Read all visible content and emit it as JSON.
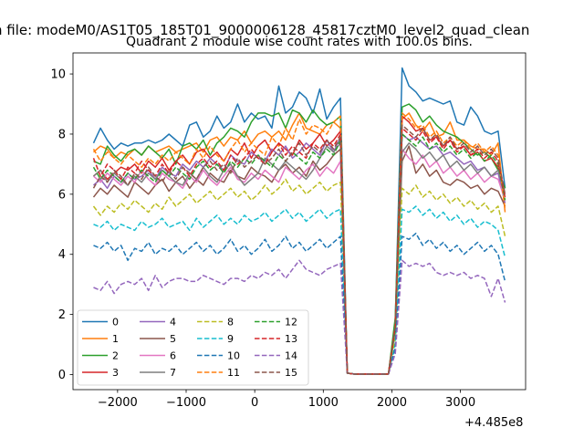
{
  "figure": {
    "suptitle": "n file: modeM0/AS1T05_185T01_9000006128_45817cztM0_level2_quad_clean",
    "title": "Quadrant 2 module wise count rates with 100.0s bins.",
    "offset_label": "+4.485e8"
  },
  "chart_data": {
    "type": "line",
    "title": "Quadrant 2 module wise count rates with 100.0s bins.",
    "xlabel": "",
    "ylabel": "",
    "x_offset": 448500000,
    "xlim": [
      -2650,
      3950
    ],
    "ylim": [
      -0.5,
      10.7
    ],
    "xticks": [
      -2000,
      -1000,
      0,
      1000,
      2000,
      3000
    ],
    "xtick_labels": [
      "−2000",
      "−1000",
      "0",
      "1000",
      "2000",
      "3000"
    ],
    "yticks": [
      0,
      2,
      4,
      6,
      8,
      10
    ],
    "ytick_labels": [
      "0",
      "2",
      "4",
      "6",
      "8",
      "10"
    ],
    "grid": false,
    "legend_placement": "lower-left",
    "x": [
      -2350,
      -2250,
      -2150,
      -2050,
      -1950,
      -1850,
      -1750,
      -1650,
      -1550,
      -1450,
      -1350,
      -1250,
      -1150,
      -1050,
      -950,
      -850,
      -750,
      -650,
      -550,
      -450,
      -350,
      -250,
      -150,
      -50,
      50,
      150,
      250,
      350,
      450,
      550,
      650,
      750,
      850,
      950,
      1050,
      1150,
      1250,
      1350,
      1450,
      1550,
      1650,
      1750,
      1850,
      1950,
      2050,
      2150,
      2250,
      2350,
      2450,
      2550,
      2650,
      2750,
      2850,
      2950,
      3050,
      3150,
      3250,
      3350,
      3450,
      3550,
      3650
    ],
    "series": [
      {
        "name": "0",
        "color": "#1f77b4",
        "dash": "solid",
        "values": [
          7.7,
          8.2,
          7.8,
          7.5,
          7.7,
          7.6,
          7.7,
          7.7,
          7.8,
          7.7,
          7.8,
          8.0,
          7.8,
          7.6,
          8.3,
          8.4,
          7.9,
          8.1,
          8.6,
          8.2,
          8.4,
          9.0,
          8.4,
          8.7,
          8.5,
          8.6,
          8.2,
          9.6,
          8.7,
          8.9,
          9.4,
          9.2,
          8.7,
          9.5,
          8.5,
          8.9,
          9.2,
          0.05,
          0.02,
          0.02,
          0.02,
          0.02,
          0.02,
          0.02,
          1.8,
          10.2,
          9.6,
          9.4,
          9.1,
          9.2,
          9.1,
          9.0,
          9.1,
          8.4,
          8.3,
          8.9,
          8.6,
          8.1,
          8.0,
          8.1,
          6.2
        ]
      },
      {
        "name": "1",
        "color": "#ff7f0e",
        "dash": "solid",
        "values": [
          7.4,
          7.6,
          7.5,
          7.2,
          7.4,
          7.3,
          7.5,
          7.3,
          7.6,
          7.4,
          7.5,
          7.6,
          7.4,
          7.5,
          7.6,
          7.7,
          7.4,
          7.8,
          7.9,
          7.6,
          7.9,
          7.8,
          8.1,
          7.7,
          8.0,
          8.1,
          7.9,
          8.1,
          7.8,
          8.3,
          8.7,
          8.2,
          8.1,
          8.0,
          8.3,
          8.4,
          8.2,
          0.05,
          0.02,
          0.02,
          0.02,
          0.02,
          0.02,
          0.02,
          1.7,
          8.5,
          8.7,
          8.3,
          8.1,
          8.4,
          7.9,
          8.0,
          8.4,
          7.8,
          7.8,
          7.6,
          7.5,
          7.5,
          7.3,
          7.7,
          5.4
        ]
      },
      {
        "name": "2",
        "color": "#2ca02c",
        "dash": "solid",
        "values": [
          7.1,
          7.0,
          7.6,
          7.3,
          7.1,
          7.4,
          7.5,
          7.3,
          7.6,
          7.4,
          7.2,
          7.5,
          7.0,
          7.6,
          7.7,
          7.5,
          7.8,
          7.3,
          7.7,
          7.9,
          8.2,
          8.1,
          7.9,
          8.4,
          8.7,
          8.7,
          8.6,
          8.7,
          8.2,
          8.8,
          8.7,
          8.4,
          8.8,
          8.5,
          8.3,
          8.4,
          8.6,
          0.05,
          0.02,
          0.02,
          0.02,
          0.02,
          0.02,
          0.02,
          1.9,
          8.9,
          9.0,
          8.8,
          8.4,
          8.6,
          8.3,
          8.1,
          8.0,
          7.9,
          7.7,
          7.5,
          7.3,
          7.4,
          7.2,
          6.8,
          6.2
        ]
      },
      {
        "name": "3",
        "color": "#d62728",
        "dash": "solid",
        "values": [
          6.6,
          6.8,
          6.5,
          6.7,
          6.9,
          6.8,
          7.0,
          6.7,
          7.1,
          6.9,
          7.2,
          6.8,
          7.1,
          7.3,
          7.0,
          7.4,
          7.5,
          7.2,
          7.4,
          7.1,
          7.5,
          7.3,
          7.7,
          7.2,
          7.6,
          7.8,
          7.4,
          7.7,
          7.5,
          7.3,
          7.8,
          7.5,
          7.7,
          8.0,
          7.6,
          7.8,
          8.1,
          0.05,
          0.02,
          0.02,
          0.02,
          0.02,
          0.02,
          0.02,
          1.6,
          8.6,
          8.4,
          8.1,
          8.2,
          7.8,
          7.9,
          7.6,
          7.8,
          7.5,
          7.6,
          7.3,
          7.4,
          7.1,
          7.2,
          6.9,
          5.9
        ]
      },
      {
        "name": "4",
        "color": "#9467bd",
        "dash": "solid",
        "values": [
          6.3,
          6.5,
          6.2,
          6.6,
          6.4,
          6.7,
          6.5,
          6.6,
          6.8,
          6.5,
          6.9,
          6.7,
          6.6,
          7.0,
          6.8,
          7.1,
          6.9,
          7.2,
          7.0,
          6.8,
          7.3,
          7.1,
          7.0,
          7.4,
          7.2,
          7.1,
          7.5,
          7.3,
          7.6,
          7.2,
          7.4,
          7.7,
          7.5,
          7.3,
          7.8,
          7.4,
          7.9,
          0.05,
          0.02,
          0.02,
          0.02,
          0.02,
          0.02,
          0.02,
          1.5,
          8.0,
          7.8,
          7.9,
          7.7,
          7.5,
          7.6,
          7.3,
          7.4,
          7.2,
          7.0,
          7.1,
          6.8,
          6.9,
          6.6,
          6.7,
          5.7
        ]
      },
      {
        "name": "5",
        "color": "#8c564b",
        "dash": "solid",
        "values": [
          5.9,
          6.2,
          6.0,
          6.3,
          6.1,
          5.9,
          6.4,
          6.2,
          6.0,
          6.3,
          6.5,
          6.1,
          6.4,
          6.6,
          6.2,
          6.5,
          6.3,
          6.7,
          6.5,
          6.4,
          6.8,
          6.6,
          6.5,
          6.9,
          6.7,
          6.6,
          6.4,
          6.8,
          7.0,
          6.7,
          6.9,
          6.6,
          7.1,
          6.8,
          7.0,
          7.3,
          7.5,
          0.05,
          0.02,
          0.02,
          0.02,
          0.02,
          0.02,
          0.02,
          1.4,
          7.1,
          7.6,
          6.7,
          7.0,
          6.6,
          6.8,
          6.4,
          6.3,
          6.5,
          6.4,
          6.2,
          6.3,
          6.0,
          6.2,
          6.1,
          5.6
        ]
      },
      {
        "name": "6",
        "color": "#e377c2",
        "dash": "solid",
        "values": [
          6.6,
          6.4,
          6.7,
          6.5,
          6.3,
          6.6,
          6.4,
          6.8,
          6.5,
          6.3,
          6.7,
          6.5,
          6.4,
          6.2,
          6.6,
          6.4,
          6.8,
          6.5,
          6.3,
          6.6,
          6.9,
          6.5,
          6.4,
          6.7,
          6.5,
          6.8,
          6.6,
          6.4,
          6.9,
          6.7,
          6.5,
          6.8,
          7.0,
          6.6,
          6.9,
          6.7,
          7.1,
          0.05,
          0.02,
          0.02,
          0.02,
          0.02,
          0.02,
          0.02,
          1.4,
          7.5,
          7.2,
          7.0,
          7.3,
          6.9,
          7.1,
          6.7,
          6.9,
          6.6,
          6.8,
          6.5,
          6.7,
          6.4,
          6.6,
          6.5,
          5.8
        ]
      },
      {
        "name": "7",
        "color": "#7f7f7f",
        "dash": "solid",
        "values": [
          6.6,
          6.8,
          6.4,
          6.7,
          6.5,
          6.3,
          6.6,
          6.4,
          6.7,
          6.5,
          6.8,
          6.6,
          6.4,
          6.3,
          6.7,
          6.5,
          6.9,
          6.6,
          6.4,
          6.8,
          7.0,
          6.6,
          6.3,
          6.5,
          6.7,
          7.2,
          7.0,
          6.8,
          7.1,
          6.9,
          6.7,
          6.5,
          6.8,
          7.2,
          7.6,
          7.4,
          7.7,
          0.05,
          0.02,
          0.02,
          0.02,
          0.02,
          0.02,
          0.02,
          1.5,
          7.4,
          7.7,
          7.5,
          7.2,
          7.4,
          7.1,
          7.3,
          6.9,
          7.1,
          6.8,
          7.0,
          6.7,
          6.9,
          6.6,
          6.8,
          6.0
        ]
      },
      {
        "name": "8",
        "color": "#bcbd22",
        "dash": "dashed",
        "values": [
          5.6,
          5.3,
          5.6,
          5.4,
          5.7,
          5.5,
          5.8,
          5.6,
          5.4,
          5.7,
          5.5,
          5.9,
          5.6,
          5.8,
          6.0,
          5.7,
          5.9,
          6.1,
          5.8,
          6.0,
          6.2,
          5.9,
          6.1,
          5.8,
          6.0,
          6.3,
          6.0,
          6.2,
          6.5,
          6.1,
          6.3,
          6.0,
          6.2,
          6.4,
          6.1,
          6.3,
          6.4,
          0.05,
          0.02,
          0.02,
          0.02,
          0.02,
          0.02,
          0.02,
          1.2,
          6.2,
          6.0,
          6.3,
          5.9,
          6.1,
          5.8,
          6.0,
          5.7,
          5.9,
          5.6,
          5.8,
          5.5,
          5.7,
          5.4,
          5.6,
          4.6
        ]
      },
      {
        "name": "9",
        "color": "#17becf",
        "dash": "dashed",
        "values": [
          5.0,
          4.9,
          5.1,
          4.8,
          5.0,
          4.9,
          4.8,
          5.1,
          4.9,
          5.0,
          5.2,
          4.9,
          5.0,
          5.1,
          4.8,
          5.2,
          4.9,
          5.1,
          5.3,
          5.0,
          5.2,
          5.0,
          5.3,
          5.1,
          5.2,
          5.4,
          5.1,
          5.3,
          5.5,
          5.2,
          5.4,
          5.1,
          5.3,
          5.5,
          5.2,
          5.4,
          5.5,
          0.05,
          0.02,
          0.02,
          0.02,
          0.02,
          0.02,
          0.02,
          1.0,
          5.5,
          5.4,
          5.6,
          5.3,
          5.5,
          5.2,
          5.4,
          5.1,
          5.3,
          5.0,
          5.2,
          4.9,
          5.1,
          5.0,
          4.8,
          3.9
        ]
      },
      {
        "name": "10",
        "color": "#1f77b4",
        "dash": "dashed",
        "values": [
          4.3,
          4.2,
          4.4,
          4.1,
          4.3,
          3.8,
          4.2,
          4.1,
          4.4,
          4.0,
          4.2,
          4.1,
          4.3,
          4.0,
          4.2,
          4.4,
          4.1,
          4.3,
          4.0,
          4.2,
          4.5,
          4.1,
          4.3,
          4.0,
          4.2,
          4.5,
          4.1,
          4.3,
          4.6,
          4.2,
          4.4,
          4.1,
          4.3,
          4.5,
          4.2,
          4.4,
          4.6,
          0.05,
          0.02,
          0.02,
          0.02,
          0.02,
          0.02,
          0.02,
          0.9,
          4.6,
          4.5,
          4.7,
          4.3,
          4.5,
          4.2,
          4.4,
          4.1,
          4.3,
          4.0,
          4.2,
          4.4,
          4.1,
          4.3,
          4.0,
          3.1
        ]
      },
      {
        "name": "11",
        "color": "#ff7f0e",
        "dash": "dashed",
        "values": [
          7.5,
          7.1,
          7.4,
          7.2,
          7.0,
          7.3,
          7.1,
          6.9,
          7.2,
          7.0,
          7.3,
          7.1,
          7.4,
          7.2,
          7.0,
          7.5,
          7.2,
          7.6,
          7.3,
          7.1,
          7.5,
          7.8,
          7.4,
          7.7,
          7.5,
          7.3,
          7.9,
          7.6,
          8.2,
          7.8,
          8.5,
          8.0,
          8.3,
          8.2,
          8.0,
          8.4,
          8.6,
          0.05,
          0.02,
          0.02,
          0.02,
          0.02,
          0.02,
          0.02,
          1.6,
          8.7,
          8.5,
          8.2,
          8.3,
          7.9,
          8.1,
          7.7,
          7.9,
          7.6,
          7.8,
          7.5,
          7.7,
          7.4,
          7.6,
          7.3,
          5.5
        ]
      },
      {
        "name": "12",
        "color": "#2ca02c",
        "dash": "dashed",
        "values": [
          6.9,
          6.5,
          6.8,
          6.6,
          6.4,
          6.7,
          6.5,
          6.8,
          6.6,
          6.4,
          6.8,
          6.6,
          6.9,
          6.7,
          6.5,
          6.9,
          7.1,
          6.8,
          7.0,
          6.7,
          7.1,
          6.9,
          7.2,
          7.0,
          7.3,
          7.1,
          6.9,
          7.3,
          7.1,
          7.4,
          7.2,
          7.0,
          7.4,
          7.2,
          7.5,
          7.3,
          7.8,
          0.05,
          0.02,
          0.02,
          0.02,
          0.02,
          0.02,
          0.02,
          1.5,
          8.0,
          7.8,
          7.6,
          7.9,
          7.5,
          7.7,
          7.4,
          7.6,
          7.3,
          7.5,
          7.2,
          7.4,
          7.1,
          7.3,
          7.0,
          5.8
        ]
      },
      {
        "name": "13",
        "color": "#d62728",
        "dash": "dashed",
        "values": [
          7.2,
          6.6,
          7.0,
          6.8,
          6.5,
          6.9,
          6.7,
          7.1,
          6.8,
          6.6,
          7.0,
          6.7,
          7.1,
          6.9,
          6.6,
          7.0,
          7.2,
          6.9,
          7.1,
          6.8,
          7.3,
          7.0,
          7.2,
          7.5,
          7.2,
          7.0,
          7.4,
          7.7,
          7.3,
          7.6,
          7.4,
          7.2,
          7.7,
          7.5,
          7.8,
          7.6,
          8.0,
          0.05,
          0.02,
          0.02,
          0.02,
          0.02,
          0.02,
          0.02,
          1.6,
          8.2,
          8.0,
          7.8,
          8.1,
          7.7,
          7.9,
          7.5,
          7.8,
          7.4,
          7.6,
          7.3,
          7.5,
          7.2,
          7.4,
          7.1,
          5.9
        ]
      },
      {
        "name": "14",
        "color": "#9467bd",
        "dash": "dashed",
        "values": [
          2.9,
          2.8,
          3.1,
          2.7,
          3.0,
          3.1,
          3.0,
          3.2,
          2.8,
          3.3,
          2.9,
          3.1,
          3.2,
          3.2,
          3.1,
          3.1,
          3.3,
          3.2,
          3.1,
          3.0,
          3.2,
          3.2,
          3.1,
          3.3,
          3.2,
          3.4,
          3.3,
          3.5,
          3.2,
          3.5,
          3.8,
          3.5,
          3.4,
          3.3,
          3.5,
          3.6,
          3.7,
          0.05,
          0.02,
          0.02,
          0.02,
          0.02,
          0.02,
          0.02,
          0.7,
          3.8,
          3.6,
          3.7,
          3.6,
          3.7,
          3.4,
          3.3,
          3.4,
          3.3,
          3.4,
          3.2,
          3.3,
          3.2,
          2.6,
          3.2,
          2.4
        ]
      },
      {
        "name": "15",
        "color": "#8c564b",
        "dash": "dashed",
        "values": [
          6.2,
          6.6,
          6.4,
          6.8,
          6.6,
          6.3,
          6.7,
          6.5,
          6.9,
          6.6,
          6.4,
          6.8,
          6.5,
          6.9,
          6.7,
          6.5,
          6.9,
          7.1,
          6.8,
          7.0,
          6.7,
          7.2,
          6.9,
          7.1,
          7.3,
          7.0,
          7.2,
          7.5,
          7.1,
          7.4,
          7.7,
          7.3,
          7.6,
          7.4,
          7.8,
          7.5,
          7.9,
          0.05,
          0.02,
          0.02,
          0.02,
          0.02,
          0.02,
          0.02,
          1.6,
          8.3,
          8.1,
          7.9,
          8.2,
          7.8,
          8.0,
          7.6,
          7.9,
          7.5,
          7.7,
          7.4,
          7.6,
          7.3,
          7.5,
          7.2,
          6.0
        ]
      }
    ]
  }
}
